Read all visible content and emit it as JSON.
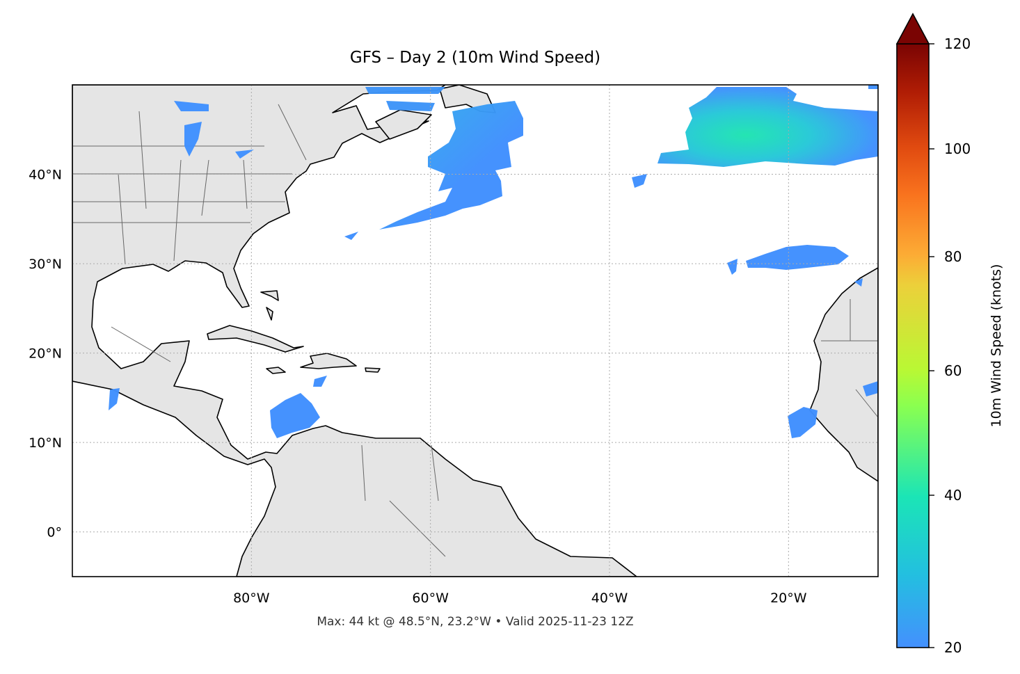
{
  "title": "GFS – Day 2 (10m Wind Speed)",
  "footer": "Max: 44 kt @ 48.5°N, 23.2°W • Valid 2025-11-23 12Z",
  "map": {
    "projection": "PlateCarree",
    "extent": {
      "lon_min": -100,
      "lon_max": -10,
      "lat_min": -5,
      "lat_max": 50
    },
    "gridlines": true,
    "land_color": "#e5e5e5",
    "wind_color_low": "#3f8ffe",
    "wind_color_mid": "#1de5b0",
    "lon_ticks": [
      {
        "value": -80,
        "label": "80°W"
      },
      {
        "value": -60,
        "label": "60°W"
      },
      {
        "value": -40,
        "label": "40°W"
      },
      {
        "value": -20,
        "label": "20°W"
      }
    ],
    "lat_ticks": [
      {
        "value": 40,
        "label": "40°N"
      },
      {
        "value": 30,
        "label": "30°N"
      },
      {
        "value": 20,
        "label": "20°N"
      },
      {
        "value": 10,
        "label": "10°N"
      },
      {
        "value": 0,
        "label": "0°"
      }
    ]
  },
  "colorbar": {
    "label": "10m Wind Speed (knots)",
    "colormap": "turbo",
    "min": 20,
    "max": 120,
    "extend": "max",
    "ticks": [
      "20",
      "40",
      "60",
      "80",
      "100",
      "120"
    ]
  }
}
